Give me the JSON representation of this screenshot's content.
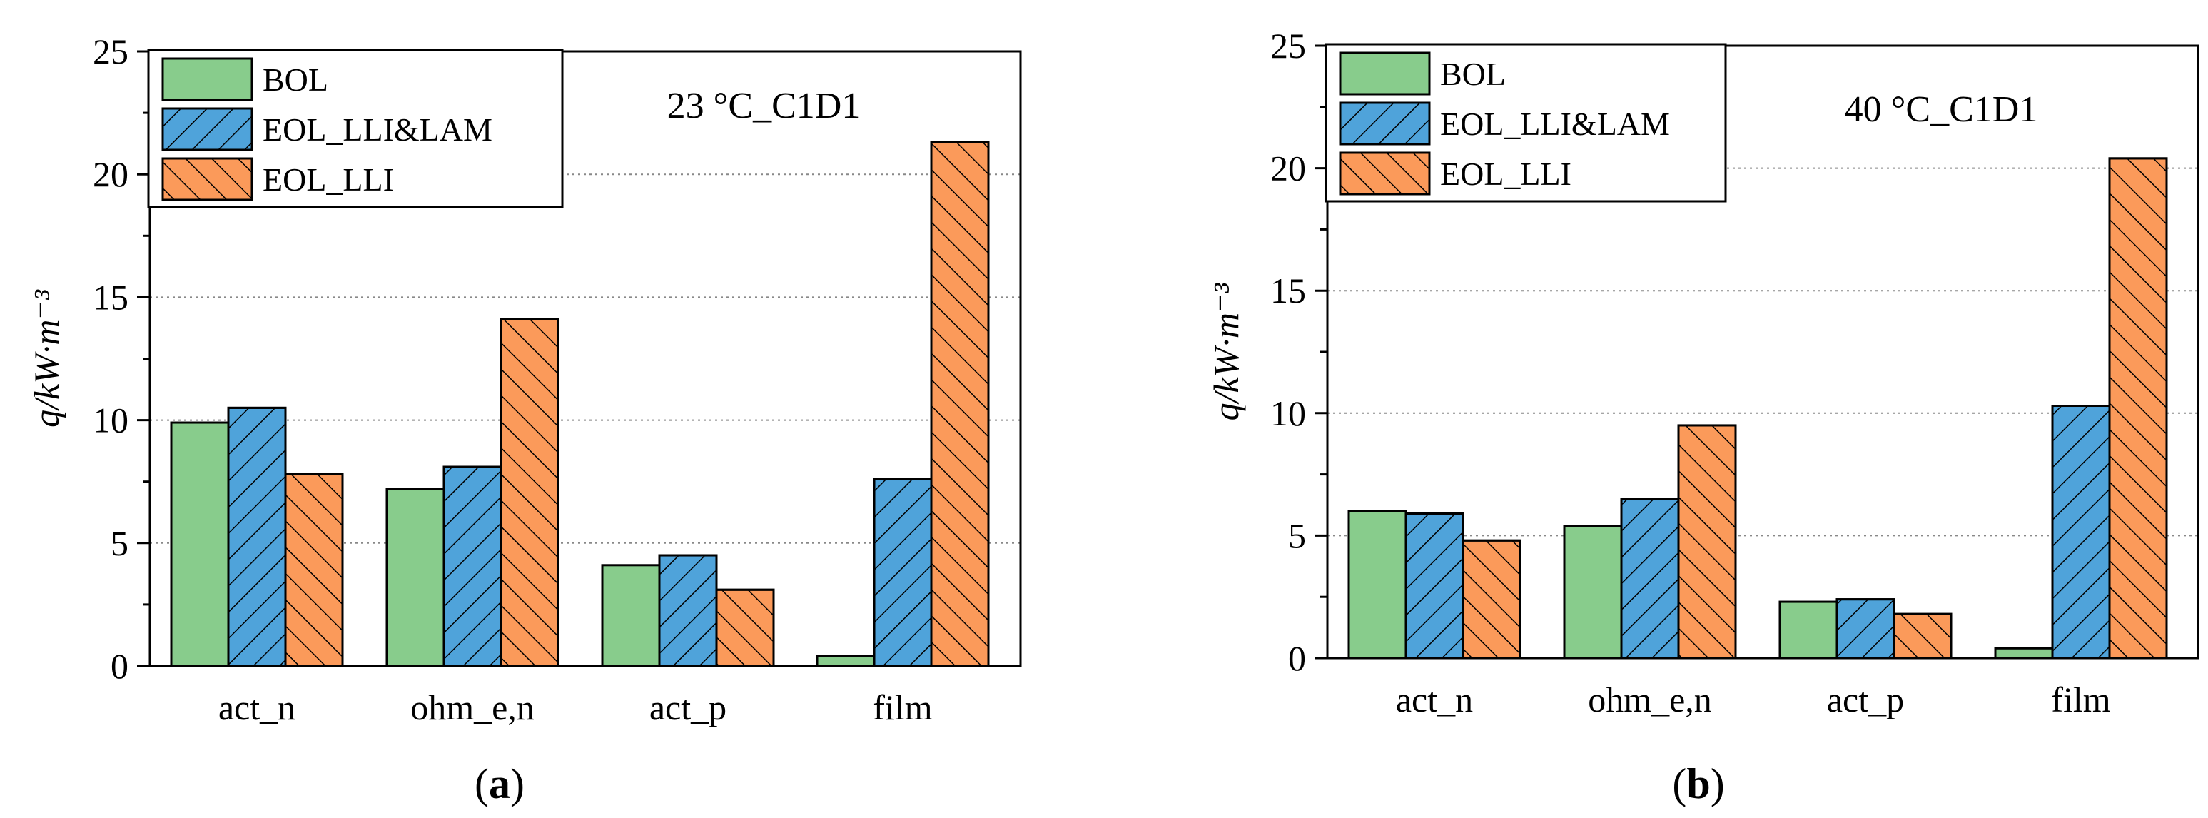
{
  "chart_data": [
    {
      "type": "bar",
      "panel_label": "(a)",
      "annotation": "23 °C_C1D1",
      "ylabel": "q/kW·m⁻³",
      "ylim": [
        0,
        25
      ],
      "yticks": [
        0,
        5,
        10,
        15,
        20,
        25
      ],
      "ytick_labels": [
        "0",
        "5",
        "10",
        "15",
        "20",
        "25"
      ],
      "grid": "horizontal dotted at 5, 10, 15, 20",
      "legend_position": "top-left",
      "categories": [
        "act_n",
        "ohm_e,n",
        "act_p",
        "film"
      ],
      "series": [
        {
          "name": "BOL",
          "color": "#88cc8c",
          "hatch": "none",
          "values": [
            9.9,
            7.2,
            4.1,
            0.4
          ]
        },
        {
          "name": "EOL_LLI&LAM",
          "color": "#4fa3da",
          "hatch": "forward",
          "values": [
            10.5,
            8.1,
            4.5,
            7.6
          ]
        },
        {
          "name": "EOL_LLI",
          "color": "#fb9a5a",
          "hatch": "back",
          "values": [
            7.8,
            14.1,
            3.1,
            21.3
          ]
        }
      ]
    },
    {
      "type": "bar",
      "panel_label": "(b)",
      "annotation": "40 °C_C1D1",
      "ylabel": "q/kW·m⁻³",
      "ylim": [
        0,
        25
      ],
      "yticks": [
        0,
        5,
        10,
        15,
        20,
        25
      ],
      "ytick_labels": [
        "0",
        "5",
        "10",
        "15",
        "20",
        "25"
      ],
      "grid": "horizontal dotted at 5, 10, 15, 20",
      "legend_position": "top-left",
      "categories": [
        "act_n",
        "ohm_e,n",
        "act_p",
        "film"
      ],
      "series": [
        {
          "name": "BOL",
          "color": "#88cc8c",
          "hatch": "none",
          "values": [
            6.0,
            5.4,
            2.3,
            0.4
          ]
        },
        {
          "name": "EOL_LLI&LAM",
          "color": "#4fa3da",
          "hatch": "forward",
          "values": [
            5.9,
            6.5,
            2.4,
            10.3
          ]
        },
        {
          "name": "EOL_LLI",
          "color": "#fb9a5a",
          "hatch": "back",
          "values": [
            4.8,
            9.5,
            1.8,
            20.4
          ]
        }
      ]
    }
  ]
}
